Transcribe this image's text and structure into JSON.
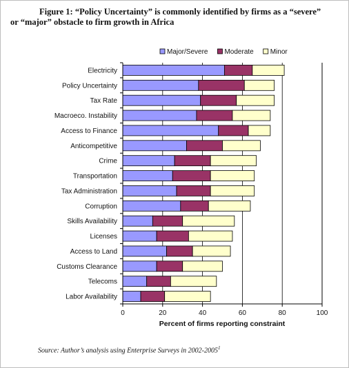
{
  "figure": {
    "title_line1": "Figure 1:  “Policy Uncertainty” is commonly identified by firms as a “severe”",
    "title_line2": "or “major” obstacle to firm growth in Africa",
    "source_text": "Source:  Author’s analysis using Enterprise Surveys in 2002-2005",
    "source_footnote": "1"
  },
  "chart_data": {
    "type": "bar",
    "orientation": "horizontal",
    "stacked": true,
    "categories": [
      "Electricity",
      "Policy Uncertainty",
      "Tax Rate",
      "Macroeco. Instability",
      "Access to Finance",
      "Anticompetitive",
      "Crime",
      "Transportation",
      "Tax Administration",
      "Corruption",
      "Skills Availability",
      "Licenses",
      "Access to Land",
      "Customs Clearance",
      "Telecoms",
      "Labor Availability"
    ],
    "series": [
      {
        "name": "Major/Severe",
        "color": "#9999ff",
        "values": [
          51,
          38,
          39,
          37,
          48,
          32,
          26,
          25,
          27,
          29,
          15,
          17,
          22,
          17,
          12,
          9
        ]
      },
      {
        "name": "Moderate",
        "color": "#993366",
        "values": [
          14,
          23,
          18,
          18,
          15,
          18,
          18,
          19,
          17,
          14,
          15,
          16,
          13,
          13,
          12,
          12
        ]
      },
      {
        "name": "Minor",
        "color": "#ffffcc",
        "values": [
          16,
          15,
          19,
          19,
          11,
          19,
          23,
          22,
          22,
          21,
          26,
          22,
          19,
          20,
          23,
          23
        ]
      }
    ],
    "xlabel": "Percent of firms reporting constraint",
    "xlim": [
      0,
      100
    ],
    "xticks": [
      "0",
      "20",
      "40",
      "60",
      "80",
      "100"
    ],
    "grid": "vertical",
    "legend_position": "top"
  }
}
